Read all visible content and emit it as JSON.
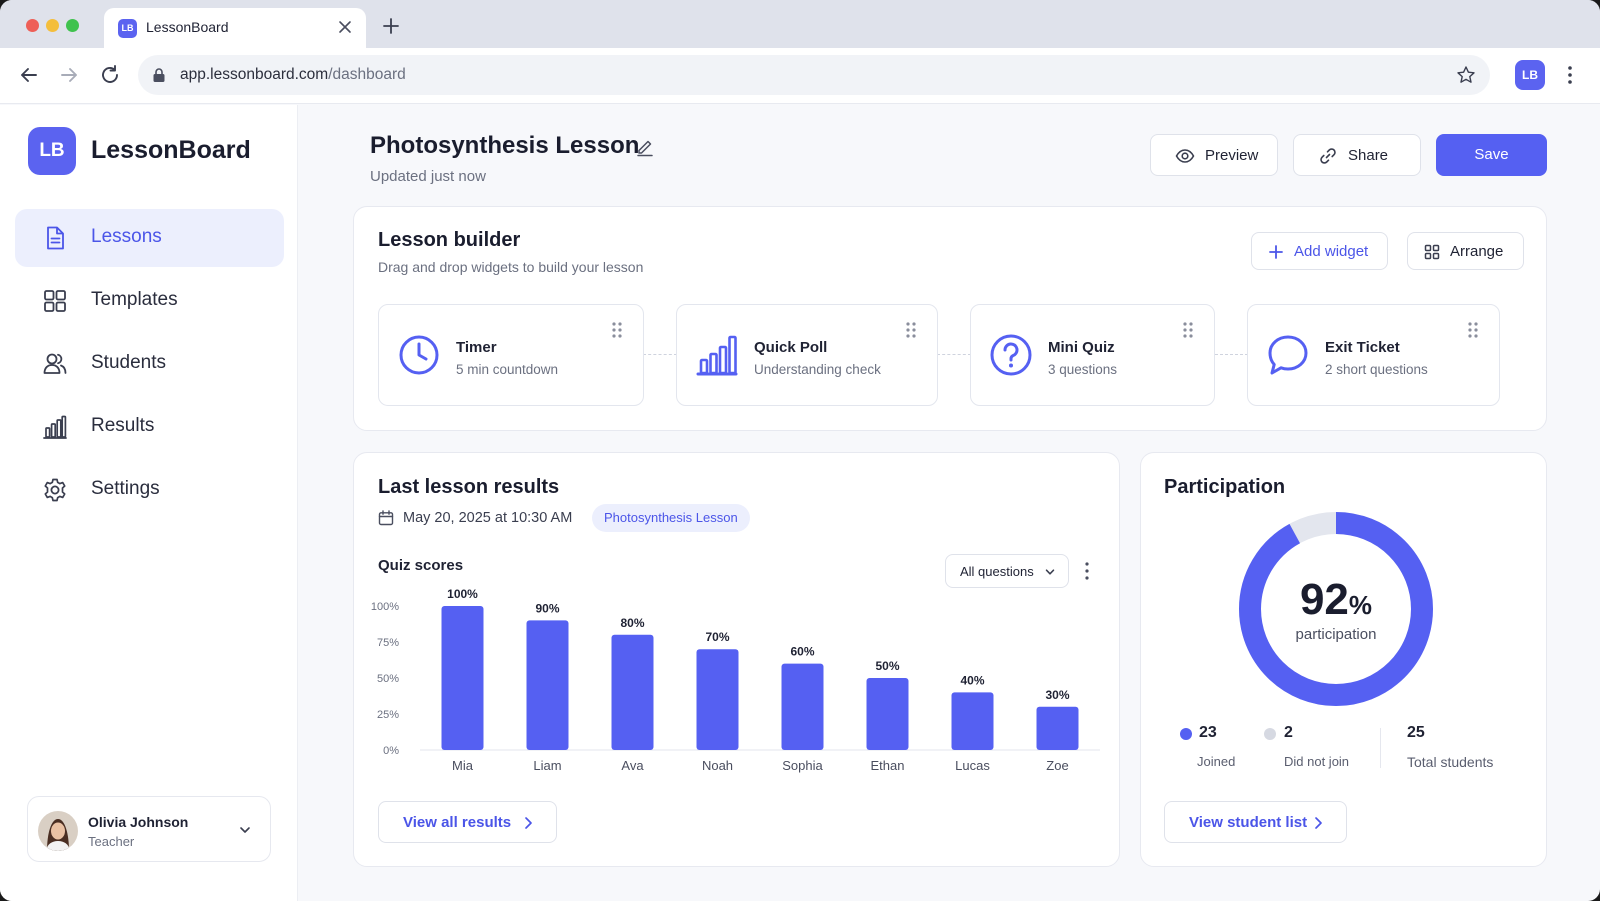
{
  "browser": {
    "tab_title": "LessonBoard",
    "favicon_text": "LB",
    "url_domain": "app.lessonboard.com",
    "url_path": "/dashboard",
    "profile_initials": "LB"
  },
  "sidebar": {
    "logo_text": "LB",
    "brand": "LessonBoard",
    "items": [
      {
        "label": "Lessons",
        "icon": "document-icon",
        "active": true
      },
      {
        "label": "Templates",
        "icon": "grid-icon",
        "active": false
      },
      {
        "label": "Students",
        "icon": "users-icon",
        "active": false
      },
      {
        "label": "Results",
        "icon": "bar-chart-icon",
        "active": false
      },
      {
        "label": "Settings",
        "icon": "gear-icon",
        "active": false
      }
    ],
    "user": {
      "name": "Olivia Johnson",
      "role": "Teacher"
    }
  },
  "header": {
    "title": "Photosynthesis Lesson",
    "subtitle": "Updated just now",
    "preview_label": "Preview",
    "share_label": "Share",
    "save_label": "Save"
  },
  "builder": {
    "title": "Lesson builder",
    "subtitle": "Drag and drop widgets to build your lesson",
    "add_widget_label": "Add widget",
    "arrange_label": "Arrange",
    "widgets": [
      {
        "title": "Timer",
        "subtitle": "5 min countdown",
        "icon": "clock-icon"
      },
      {
        "title": "Quick Poll",
        "subtitle": "Understanding check",
        "icon": "poll-icon"
      },
      {
        "title": "Mini Quiz",
        "subtitle": "3 questions",
        "icon": "question-icon"
      },
      {
        "title": "Exit Ticket",
        "subtitle": "2 short questions",
        "icon": "chat-bubble-icon"
      }
    ]
  },
  "results": {
    "title": "Last lesson results",
    "date": "May 20, 2025 at 10:30 AM",
    "tag": "Photosynthesis Lesson",
    "chart_title": "Quiz scores",
    "filter": "All questions",
    "view_all_label": "View all results"
  },
  "participation": {
    "title": "Participation",
    "percent_number": "92",
    "percent_sign": "%",
    "percent_label": "participation",
    "joined": "23",
    "joined_label": "Joined",
    "not_joined": "2",
    "not_joined_label": "Did not join",
    "total": "25",
    "total_label": "Total students",
    "view_list_label": "View student list",
    "fraction": 0.92
  },
  "colors": {
    "accent": "#5560f2",
    "accent_light": "#eceffd",
    "muted_ring": "#e3e6ee"
  },
  "chart_data": {
    "type": "bar",
    "title": "Quiz scores",
    "categories": [
      "Mia",
      "Liam",
      "Ava",
      "Noah",
      "Sophia",
      "Ethan",
      "Lucas",
      "Zoe"
    ],
    "values": [
      100,
      90,
      80,
      70,
      60,
      50,
      40,
      30
    ],
    "value_labels": [
      "100%",
      "90%",
      "80%",
      "70%",
      "60%",
      "50%",
      "40%",
      "30%"
    ],
    "y_ticks": [
      "0%",
      "25%",
      "50%",
      "75%",
      "100%"
    ],
    "ylim": [
      0,
      100
    ],
    "grid": false,
    "color": "#5560f2"
  }
}
